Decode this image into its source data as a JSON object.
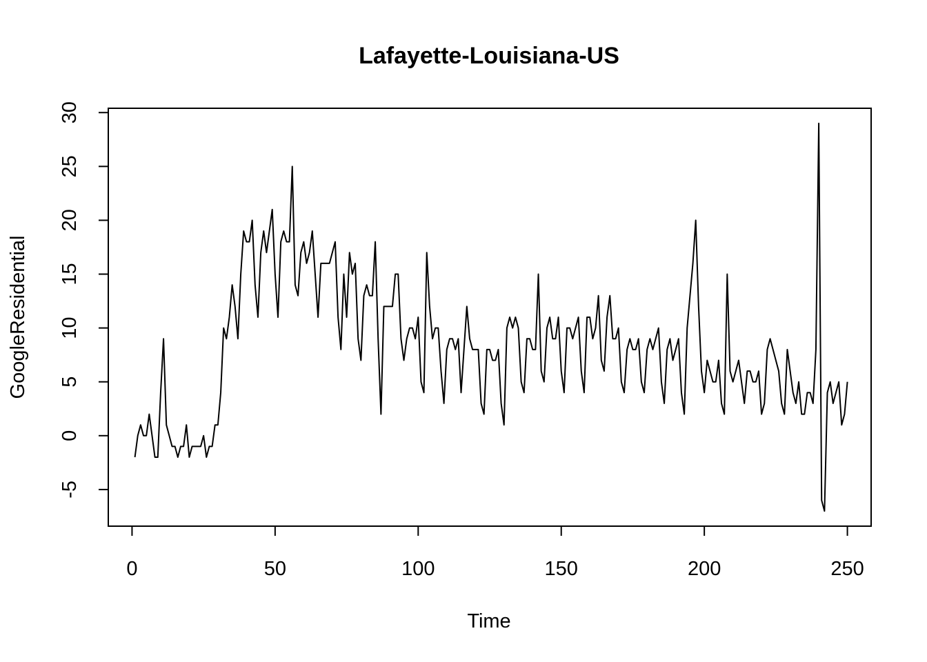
{
  "chart_data": {
    "type": "line",
    "title": "Lafayette-Louisiana-US",
    "xlabel": "Time",
    "ylabel": "GoogleResidential",
    "xlim": [
      -8.3,
      258.3
    ],
    "ylim": [
      -8.4,
      30.4
    ],
    "xticks": [
      0,
      50,
      100,
      150,
      200,
      250
    ],
    "xtick_labels": [
      "0",
      "50",
      "100",
      "150",
      "200",
      "250"
    ],
    "yticks": [
      -5,
      0,
      5,
      10,
      15,
      20,
      25,
      30
    ],
    "ytick_labels": [
      "-5",
      "0",
      "5",
      "10",
      "15",
      "20",
      "25",
      "30"
    ],
    "grid": false,
    "line_color": "#000000",
    "series": [
      {
        "name": "GoogleResidential",
        "x_start": 1,
        "values": [
          -2,
          0,
          1,
          0,
          0,
          2,
          0,
          -2,
          -2,
          4,
          9,
          1,
          0,
          -1,
          -1,
          -2,
          -1,
          -1,
          1,
          -2,
          -1,
          -1,
          -1,
          -1,
          0,
          -2,
          -1,
          -1,
          1,
          1,
          4,
          10,
          9,
          11,
          14,
          12,
          9,
          15,
          19,
          18,
          18,
          20,
          14,
          11,
          17,
          19,
          17,
          19,
          21,
          15,
          11,
          18,
          19,
          18,
          18,
          25,
          14,
          13,
          17,
          18,
          16,
          17,
          19,
          15,
          11,
          16,
          16,
          16,
          16,
          17,
          18,
          11,
          8,
          15,
          11,
          17,
          15,
          16,
          9,
          7,
          13,
          14,
          13,
          13,
          18,
          9,
          2,
          12,
          12,
          12,
          12,
          15,
          15,
          9,
          7,
          9,
          10,
          10,
          9,
          11,
          5,
          4,
          17,
          12,
          9,
          10,
          10,
          6,
          3,
          8,
          9,
          9,
          8,
          9,
          4,
          8,
          12,
          9,
          8,
          8,
          8,
          3,
          2,
          8,
          8,
          7,
          7,
          8,
          3,
          1,
          10,
          11,
          10,
          11,
          10,
          5,
          4,
          9,
          9,
          8,
          8,
          15,
          6,
          5,
          10,
          11,
          9,
          9,
          11,
          6,
          4,
          10,
          10,
          9,
          10,
          11,
          6,
          4,
          11,
          11,
          9,
          10,
          13,
          7,
          6,
          11,
          13,
          9,
          9,
          10,
          5,
          4,
          8,
          9,
          8,
          8,
          9,
          5,
          4,
          8,
          9,
          8,
          9,
          10,
          5,
          3,
          8,
          9,
          7,
          8,
          9,
          4,
          2,
          10,
          13,
          16,
          20,
          12,
          6,
          4,
          7,
          6,
          5,
          5,
          7,
          3,
          2,
          15,
          6,
          5,
          6,
          7,
          5,
          3,
          6,
          6,
          5,
          5,
          6,
          2,
          3,
          8,
          9,
          8,
          7,
          6,
          3,
          2,
          8,
          6,
          4,
          3,
          5,
          2,
          2,
          4,
          4,
          3,
          8,
          29,
          -6,
          -7,
          4,
          5,
          3,
          4,
          5,
          1,
          2,
          5
        ]
      }
    ]
  }
}
